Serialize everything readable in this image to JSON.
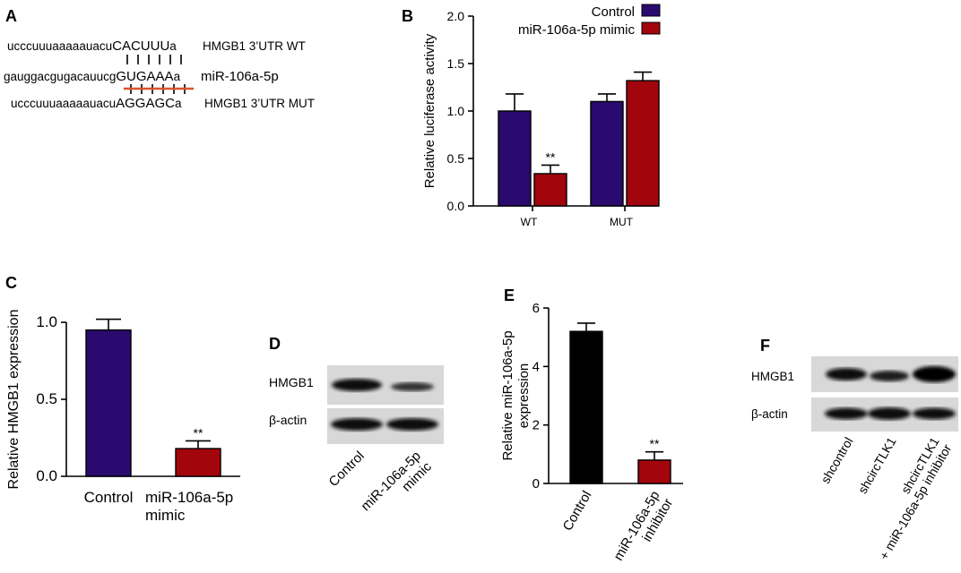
{
  "colors": {
    "control": "#2a0a6e",
    "treated": "#a3050d",
    "black": "#000000",
    "mut_line": "#e0502a"
  },
  "panels": {
    "A": {
      "label": "A",
      "rows": [
        {
          "seq_a": "ucccuuuaaaaauacu",
          "seq_b": "CACUUU",
          "seq_c": "a",
          "name": "HMGB1 3’UTR WT"
        },
        {
          "seq_a": "gauggacgugacauucg",
          "seq_b": "GUGAAA",
          "seq_c": "a",
          "name": "miR-106a-5p"
        },
        {
          "seq_a": "ucccuuuaaaaauacu",
          "seq_b": "AGGAGC",
          "seq_c": "a",
          "name": "HMGB1 3’UTR MUT"
        }
      ]
    },
    "B": {
      "label": "B"
    },
    "C": {
      "label": "C"
    },
    "D": {
      "label": "D",
      "rows": [
        "HMGB1",
        "β-actin"
      ],
      "lanes": [
        "Control",
        "miR-106a-5p\nmimic"
      ]
    },
    "E": {
      "label": "E"
    },
    "F": {
      "label": "F",
      "rows": [
        "HMGB1",
        "β-actin"
      ],
      "lanes": [
        "shcontrol",
        "shcircTLK1",
        "shcircTLK1\n+ miR-106a-5p inhibitor"
      ]
    }
  },
  "chart_data": [
    {
      "panel": "B",
      "type": "bar",
      "categories": [
        "WT",
        "MUT"
      ],
      "series": [
        {
          "name": "Control",
          "values": [
            1.0,
            1.1
          ],
          "errors": [
            0.18,
            0.08
          ],
          "sig": [
            "",
            ""
          ]
        },
        {
          "name": "miR-106a-5p mimic",
          "values": [
            0.34,
            1.32
          ],
          "errors": [
            0.09,
            0.09
          ],
          "sig": [
            "**",
            ""
          ]
        }
      ],
      "ylabel": "Relative luciferase activity",
      "xlabel": "",
      "ylim": [
        0,
        2.0
      ],
      "yticks": [
        "0.0",
        "0.5",
        "1.0",
        "1.5",
        "2.0"
      ],
      "legend": "top-right"
    },
    {
      "panel": "C",
      "type": "bar",
      "categories": [
        "Control",
        "miR-106a-5p\nmimic"
      ],
      "values": [
        0.95,
        0.18
      ],
      "errors": [
        0.07,
        0.05
      ],
      "sig": [
        "",
        "**"
      ],
      "ylabel": "Relative HMGB1 expression",
      "xlabel": "",
      "ylim": [
        0,
        1.0
      ],
      "yticks": [
        "0.0",
        "0.5",
        "1.0"
      ]
    },
    {
      "panel": "E",
      "type": "bar",
      "categories": [
        "Control",
        "miR-106a-5p\ninhibitor"
      ],
      "values": [
        5.2,
        0.8
      ],
      "errors": [
        0.28,
        0.28
      ],
      "sig": [
        "",
        "**"
      ],
      "ylabel": "Relative miR-106a-5p\nexpression",
      "xlabel": "",
      "ylim": [
        0,
        6
      ],
      "yticks": [
        "0",
        "2",
        "4",
        "6"
      ]
    }
  ]
}
